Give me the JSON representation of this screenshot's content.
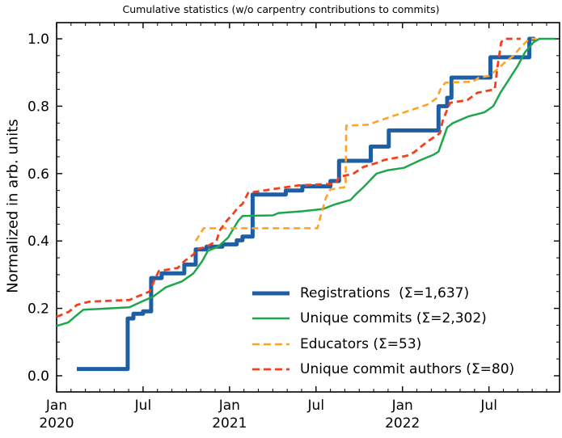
{
  "figure": {
    "title": "Cumulative statistics (w/o carpentry contributions to commits)"
  },
  "chart_data": {
    "type": "line",
    "title": "Cumulative statistics (w/o carpentry contributions to commits)",
    "xlabel": "",
    "ylabel": "Normalized in arb. units",
    "x_unit": "months since Jan 2020",
    "xlim": [
      0,
      34.9
    ],
    "ylim": [
      -0.048,
      1.048
    ],
    "grid": false,
    "legend_position": "lower right, no frame",
    "x_axis": {
      "major_ticks": [
        {
          "month": 0,
          "label": "Jan",
          "year": "2020"
        },
        {
          "month": 6,
          "label": "Jul",
          "year": ""
        },
        {
          "month": 12,
          "label": "Jan",
          "year": "2021"
        },
        {
          "month": 18,
          "label": "Jul",
          "year": ""
        },
        {
          "month": 24,
          "label": "Jan",
          "year": "2022"
        },
        {
          "month": 30,
          "label": "Jul",
          "year": ""
        }
      ],
      "minor_tick_every_months": 1
    },
    "y_axis": {
      "ticks": [
        "0.0",
        "0.2",
        "0.4",
        "0.6",
        "0.8",
        "1.0"
      ],
      "tick_values": [
        0.0,
        0.2,
        0.4,
        0.6,
        0.8,
        1.0
      ],
      "minor_step": 0.05,
      "label": "Normalized in arb. units"
    },
    "series": [
      {
        "name": "Registrations",
        "legend_label": "Registrations  (Σ=1,637)",
        "total": 1637,
        "color": "#1e5fa4",
        "style": "solid",
        "width": 5,
        "points": [
          [
            1.4,
            0.02
          ],
          [
            4.93,
            0.02
          ],
          [
            4.93,
            0.17
          ],
          [
            5.33,
            0.17
          ],
          [
            5.33,
            0.184
          ],
          [
            6.0,
            0.184
          ],
          [
            6.0,
            0.191
          ],
          [
            6.56,
            0.191
          ],
          [
            6.56,
            0.29
          ],
          [
            7.29,
            0.29
          ],
          [
            7.29,
            0.304
          ],
          [
            8.86,
            0.304
          ],
          [
            8.86,
            0.33
          ],
          [
            9.65,
            0.33
          ],
          [
            9.65,
            0.375
          ],
          [
            10.4,
            0.375
          ],
          [
            10.4,
            0.383
          ],
          [
            11.5,
            0.383
          ],
          [
            11.5,
            0.39
          ],
          [
            12.5,
            0.39
          ],
          [
            12.5,
            0.402
          ],
          [
            12.9,
            0.402
          ],
          [
            12.9,
            0.413
          ],
          [
            13.6,
            0.413
          ],
          [
            13.6,
            0.538
          ],
          [
            15.9,
            0.538
          ],
          [
            15.9,
            0.55
          ],
          [
            17.05,
            0.55
          ],
          [
            17.05,
            0.562
          ],
          [
            19.0,
            0.562
          ],
          [
            19.0,
            0.578
          ],
          [
            19.6,
            0.578
          ],
          [
            19.6,
            0.638
          ],
          [
            21.8,
            0.638
          ],
          [
            21.8,
            0.68
          ],
          [
            23.05,
            0.68
          ],
          [
            23.05,
            0.728
          ],
          [
            26.5,
            0.728
          ],
          [
            26.5,
            0.8
          ],
          [
            27.1,
            0.8
          ],
          [
            27.1,
            0.825
          ],
          [
            27.4,
            0.825
          ],
          [
            27.4,
            0.885
          ],
          [
            30.1,
            0.885
          ],
          [
            30.1,
            0.945
          ],
          [
            32.8,
            0.945
          ],
          [
            32.8,
            1.0
          ],
          [
            33.2,
            1.0
          ]
        ]
      },
      {
        "name": "Unique commits",
        "legend_label": "Unique commits (Σ=2,302)",
        "total": 2302,
        "color": "#1ca74c",
        "style": "solid",
        "width": 2.5,
        "points": [
          [
            0,
            0.148
          ],
          [
            0.8,
            0.158
          ],
          [
            1.4,
            0.18
          ],
          [
            1.85,
            0.196
          ],
          [
            5.05,
            0.203
          ],
          [
            5.9,
            0.22
          ],
          [
            6.7,
            0.235
          ],
          [
            7.6,
            0.263
          ],
          [
            8.7,
            0.28
          ],
          [
            9.5,
            0.304
          ],
          [
            10.1,
            0.34
          ],
          [
            10.5,
            0.371
          ],
          [
            11.2,
            0.383
          ],
          [
            11.9,
            0.41
          ],
          [
            12.6,
            0.46
          ],
          [
            12.9,
            0.474
          ],
          [
            15.0,
            0.476
          ],
          [
            15.4,
            0.483
          ],
          [
            17.0,
            0.488
          ],
          [
            18.5,
            0.495
          ],
          [
            19.2,
            0.507
          ],
          [
            20.4,
            0.522
          ],
          [
            20.75,
            0.538
          ],
          [
            21.3,
            0.56
          ],
          [
            22.2,
            0.6
          ],
          [
            23.0,
            0.61
          ],
          [
            24.1,
            0.617
          ],
          [
            25.2,
            0.639
          ],
          [
            26.1,
            0.655
          ],
          [
            26.5,
            0.665
          ],
          [
            27.1,
            0.737
          ],
          [
            27.5,
            0.75
          ],
          [
            28.6,
            0.77
          ],
          [
            29.7,
            0.782
          ],
          [
            30.3,
            0.8
          ],
          [
            30.8,
            0.84
          ],
          [
            31.4,
            0.88
          ],
          [
            32.0,
            0.92
          ],
          [
            32.5,
            0.96
          ],
          [
            33.1,
            0.99
          ],
          [
            33.5,
            1.0
          ],
          [
            34.6,
            1.0
          ]
        ]
      },
      {
        "name": "Educators",
        "legend_label": "Educators (Σ=53)",
        "total": 53,
        "color": "#ffa226",
        "style": "dashed",
        "width": 2.6,
        "points": [
          [
            9.65,
            0.4
          ],
          [
            9.8,
            0.41
          ],
          [
            10.2,
            0.438
          ],
          [
            18.1,
            0.438
          ],
          [
            18.3,
            0.47
          ],
          [
            18.7,
            0.53
          ],
          [
            19.0,
            0.553
          ],
          [
            20.05,
            0.56
          ],
          [
            20.1,
            0.742
          ],
          [
            21.6,
            0.745
          ],
          [
            23.0,
            0.766
          ],
          [
            24.7,
            0.79
          ],
          [
            25.8,
            0.806
          ],
          [
            26.4,
            0.825
          ],
          [
            26.7,
            0.857
          ],
          [
            27.0,
            0.87
          ],
          [
            28.9,
            0.873
          ],
          [
            29.3,
            0.885
          ],
          [
            30.0,
            0.89
          ],
          [
            30.6,
            0.91
          ],
          [
            31.1,
            0.93
          ],
          [
            31.7,
            0.95
          ],
          [
            32.2,
            0.975
          ],
          [
            32.8,
            1.0
          ],
          [
            33.3,
            1.0
          ]
        ]
      },
      {
        "name": "Unique commit authors",
        "legend_label": "Unique commit authors (Σ=80)",
        "total": 80,
        "color": "#f2401d",
        "style": "dashed",
        "width": 2.8,
        "points": [
          [
            0,
            0.175
          ],
          [
            0.3,
            0.18
          ],
          [
            0.85,
            0.19
          ],
          [
            1.4,
            0.21
          ],
          [
            2.25,
            0.22
          ],
          [
            5.05,
            0.225
          ],
          [
            5.6,
            0.235
          ],
          [
            6.45,
            0.25
          ],
          [
            6.85,
            0.29
          ],
          [
            7.1,
            0.311
          ],
          [
            8.4,
            0.32
          ],
          [
            8.86,
            0.34
          ],
          [
            9.5,
            0.36
          ],
          [
            9.7,
            0.375
          ],
          [
            10.4,
            0.383
          ],
          [
            11.1,
            0.4
          ],
          [
            11.3,
            0.43
          ],
          [
            11.8,
            0.46
          ],
          [
            12.2,
            0.478
          ],
          [
            12.6,
            0.5
          ],
          [
            12.9,
            0.51
          ],
          [
            13.3,
            0.543
          ],
          [
            14.4,
            0.55
          ],
          [
            15.5,
            0.557
          ],
          [
            16.8,
            0.565
          ],
          [
            19.35,
            0.57
          ],
          [
            19.6,
            0.59
          ],
          [
            20.6,
            0.6
          ],
          [
            21.3,
            0.62
          ],
          [
            22.4,
            0.634
          ],
          [
            22.7,
            0.64
          ],
          [
            24.3,
            0.653
          ],
          [
            24.8,
            0.663
          ],
          [
            25.7,
            0.694
          ],
          [
            26.6,
            0.72
          ],
          [
            26.8,
            0.758
          ],
          [
            27.3,
            0.81
          ],
          [
            28.5,
            0.818
          ],
          [
            29.2,
            0.84
          ],
          [
            30.4,
            0.85
          ],
          [
            30.6,
            0.92
          ],
          [
            30.85,
            0.99
          ],
          [
            31.1,
            1.0
          ],
          [
            32.2,
            1.0
          ]
        ]
      }
    ]
  }
}
